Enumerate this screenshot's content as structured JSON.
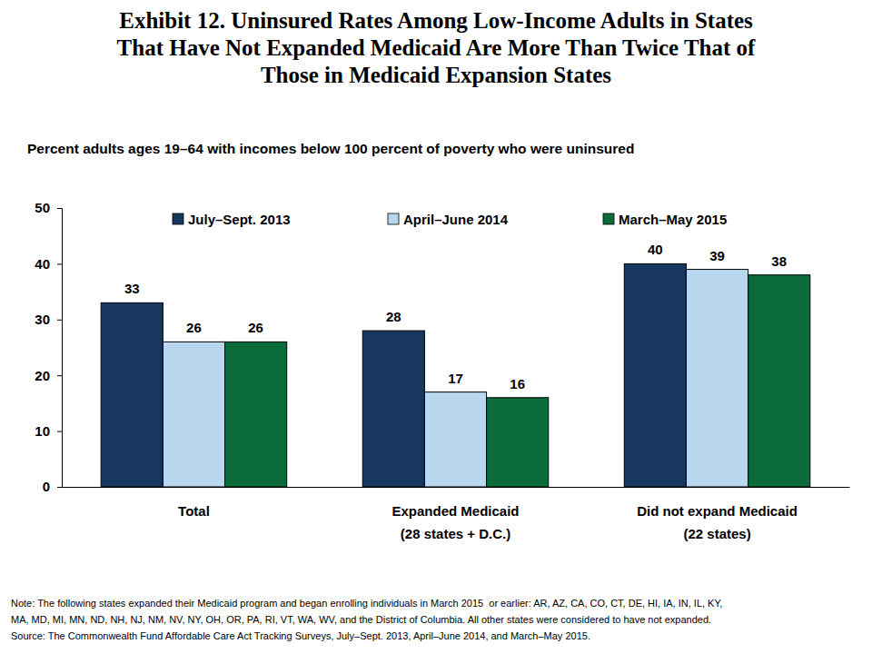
{
  "chart_data": {
    "type": "bar",
    "title": "Exhibit 12. Uninsured Rates Among Low-Income Adults in States\nThat Have Not Expanded Medicaid Are More Than Twice That of\nThose in Medicaid Expansion States",
    "subtitle": "Percent adults ages 19–64 with incomes below 100 percent of poverty who were uninsured",
    "note": "Note: The following states expanded their Medicaid program and began enrolling individuals in March 2015  or earlier: AR, AZ, CA, CO, CT, DE, HI, IA, IN, IL, KY,\nMA, MD, MI, MN, ND, NH, NJ, NM, NV, NY, OH, OR, PA, RI, VT, WA, WV, and the District of Columbia. All other states were considered to have not expanded.",
    "source": "Source: The Commonwealth Fund Affordable Care Act Tracking Surveys, July–Sept. 2013, April–June 2014, and March–May 2015.",
    "categories": [
      "Total",
      "Expanded Medicaid\n(28 states + D.C.)",
      "Did not expand Medicaid\n(22 states)"
    ],
    "series": [
      {
        "name": "July–Sept. 2013",
        "color": "#17375e",
        "values": [
          33,
          28,
          40
        ]
      },
      {
        "name": "April–June 2014",
        "color": "#b9d8ef",
        "values": [
          26,
          17,
          39
        ]
      },
      {
        "name": "March–May 2015",
        "color": "#0b6b3a",
        "values": [
          26,
          16,
          38
        ]
      }
    ],
    "ylim": [
      0,
      50
    ],
    "yticks": [
      0,
      10,
      20,
      30,
      40,
      50
    ],
    "grid": false,
    "legend": "top",
    "data_labels": true
  }
}
